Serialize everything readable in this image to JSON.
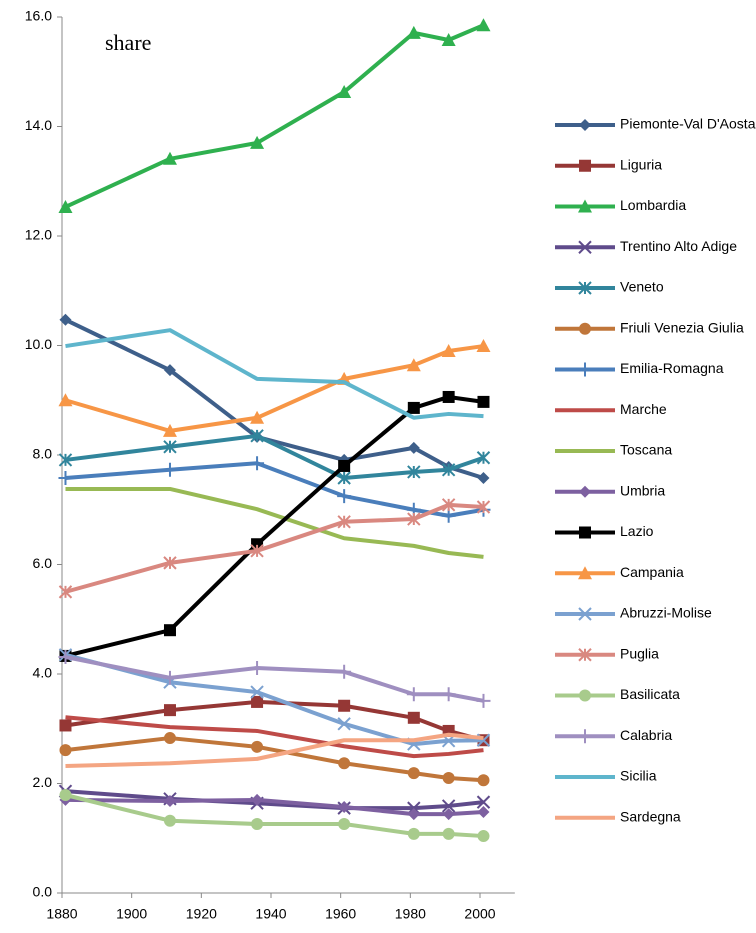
{
  "chart_data": {
    "type": "line",
    "annotation": "share",
    "x": [
      1881,
      1911,
      1936,
      1961,
      1981,
      1991,
      2001
    ],
    "xlim": [
      1880,
      2010
    ],
    "xticks": [
      1880,
      1900,
      1920,
      1940,
      1960,
      1980,
      2000
    ],
    "ylim": [
      0,
      16
    ],
    "yticks": [
      {
        "value": 0,
        "label": "0.0"
      },
      {
        "value": 2,
        "label": "2.0"
      },
      {
        "value": 4,
        "label": "4.0"
      },
      {
        "value": 6,
        "label": "6.0"
      },
      {
        "value": 8,
        "label": "8.0"
      },
      {
        "value": 10,
        "label": "10.0"
      },
      {
        "value": 12,
        "label": "12.0"
      },
      {
        "value": 14,
        "label": "14.0"
      },
      {
        "value": 16,
        "label": "16.0"
      }
    ],
    "grid": false,
    "legend": "right",
    "series": [
      {
        "name": "Piemonte-Val D'Aosta",
        "color": "#3e5f8a",
        "marker": "diamond",
        "values": [
          10.47,
          9.55,
          8.33,
          7.91,
          8.13,
          7.78,
          7.58
        ]
      },
      {
        "name": "Liguria",
        "color": "#953735",
        "marker": "square",
        "values": [
          3.06,
          3.34,
          3.49,
          3.42,
          3.2,
          2.96,
          2.79
        ]
      },
      {
        "name": "Lombardia",
        "color": "#2fb04f",
        "marker": "triangle",
        "values": [
          12.53,
          13.41,
          13.7,
          14.63,
          15.71,
          15.58,
          15.85
        ]
      },
      {
        "name": "Trentino Alto Adige",
        "color": "#5f4b8b",
        "marker": "x",
        "values": [
          1.86,
          1.72,
          1.64,
          1.55,
          1.55,
          1.59,
          1.66
        ]
      },
      {
        "name": "Veneto",
        "color": "#31859c",
        "marker": "asterisk",
        "values": [
          7.91,
          8.15,
          8.35,
          7.58,
          7.69,
          7.73,
          7.95
        ]
      },
      {
        "name": "Friuli Venezia Giulia",
        "color": "#c0763a",
        "marker": "circle",
        "values": [
          2.61,
          2.83,
          2.67,
          2.37,
          2.19,
          2.1,
          2.06
        ]
      },
      {
        "name": "Emilia-Romagna",
        "color": "#4a7ebb",
        "marker": "plus",
        "values": [
          7.58,
          7.73,
          7.85,
          7.25,
          7.0,
          6.89,
          7.0
        ]
      },
      {
        "name": "Marche",
        "color": "#be4b48",
        "marker": "none",
        "values": [
          3.21,
          3.03,
          2.96,
          2.68,
          2.5,
          2.54,
          2.61
        ]
      },
      {
        "name": "Toscana",
        "color": "#98b954",
        "marker": "none",
        "values": [
          7.38,
          7.38,
          7.01,
          6.48,
          6.34,
          6.21,
          6.14
        ]
      },
      {
        "name": "Umbria",
        "color": "#7d60a0",
        "marker": "diamond",
        "values": [
          1.7,
          1.68,
          1.7,
          1.57,
          1.44,
          1.44,
          1.48
        ]
      },
      {
        "name": "Lazio",
        "color": "#000000",
        "marker": "square",
        "values": [
          4.33,
          4.8,
          6.37,
          7.8,
          8.86,
          9.06,
          8.97
        ]
      },
      {
        "name": "Campania",
        "color": "#f79646",
        "marker": "triangle",
        "values": [
          9.0,
          8.44,
          8.68,
          9.39,
          9.64,
          9.9,
          9.99
        ]
      },
      {
        "name": "Abruzzi-Molise",
        "color": "#7ba1d0",
        "marker": "x",
        "values": [
          4.35,
          3.85,
          3.67,
          3.09,
          2.72,
          2.78,
          2.79
        ]
      },
      {
        "name": "Puglia",
        "color": "#d98880",
        "marker": "asterisk",
        "values": [
          5.5,
          6.03,
          6.25,
          6.78,
          6.83,
          7.09,
          7.05
        ]
      },
      {
        "name": "Basilicata",
        "color": "#a8cb8c",
        "marker": "circle",
        "values": [
          1.79,
          1.32,
          1.26,
          1.26,
          1.08,
          1.08,
          1.04
        ]
      },
      {
        "name": "Calabria",
        "color": "#9f8fc0",
        "marker": "plus",
        "values": [
          4.31,
          3.93,
          4.11,
          4.04,
          3.63,
          3.63,
          3.51
        ]
      },
      {
        "name": "Sicilia",
        "color": "#5eb5cc",
        "marker": "none",
        "values": [
          9.99,
          10.28,
          9.39,
          9.33,
          8.68,
          8.75,
          8.71
        ]
      },
      {
        "name": "Sardegna",
        "color": "#f4a582",
        "marker": "none",
        "values": [
          2.32,
          2.37,
          2.45,
          2.79,
          2.79,
          2.89,
          2.83
        ]
      }
    ]
  }
}
